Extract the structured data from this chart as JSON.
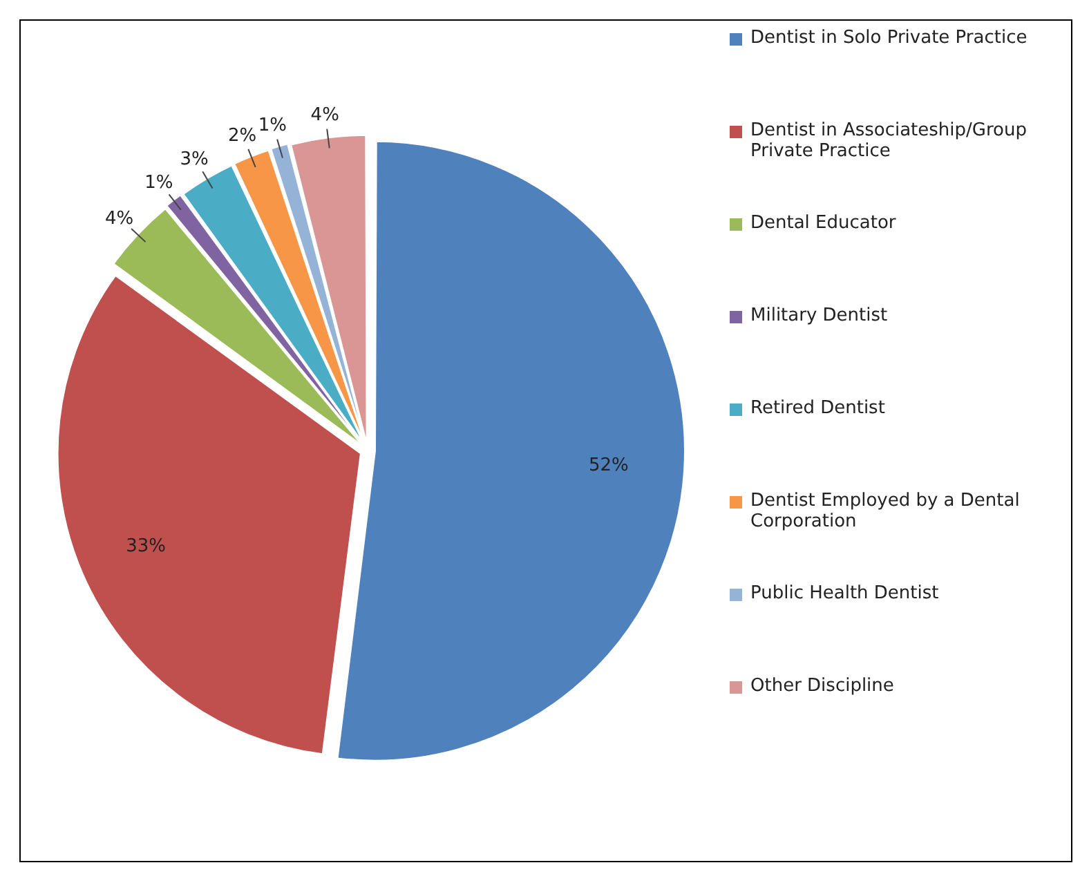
{
  "chart_data": {
    "type": "pie",
    "categories": [
      "Dentist in Solo Private Practice",
      "Dentist in Associateship/Group Private Practice",
      "Dental Educator",
      "Military Dentist",
      "Retired Dentist",
      "Dentist Employed by a Dental Corporation",
      "Public Health Dentist",
      "Other Discipline"
    ],
    "values": [
      52,
      33,
      4,
      1,
      3,
      2,
      1,
      4
    ],
    "colors": [
      "#4f81bd",
      "#c0504d",
      "#9bbb59",
      "#8064a2",
      "#4bacc6",
      "#f79646",
      "#95b3d7",
      "#d99694"
    ],
    "value_labels": [
      "52%",
      "33%",
      "4%",
      "1%",
      "3%",
      "2%",
      "1%",
      "4%"
    ],
    "legend": "right"
  }
}
